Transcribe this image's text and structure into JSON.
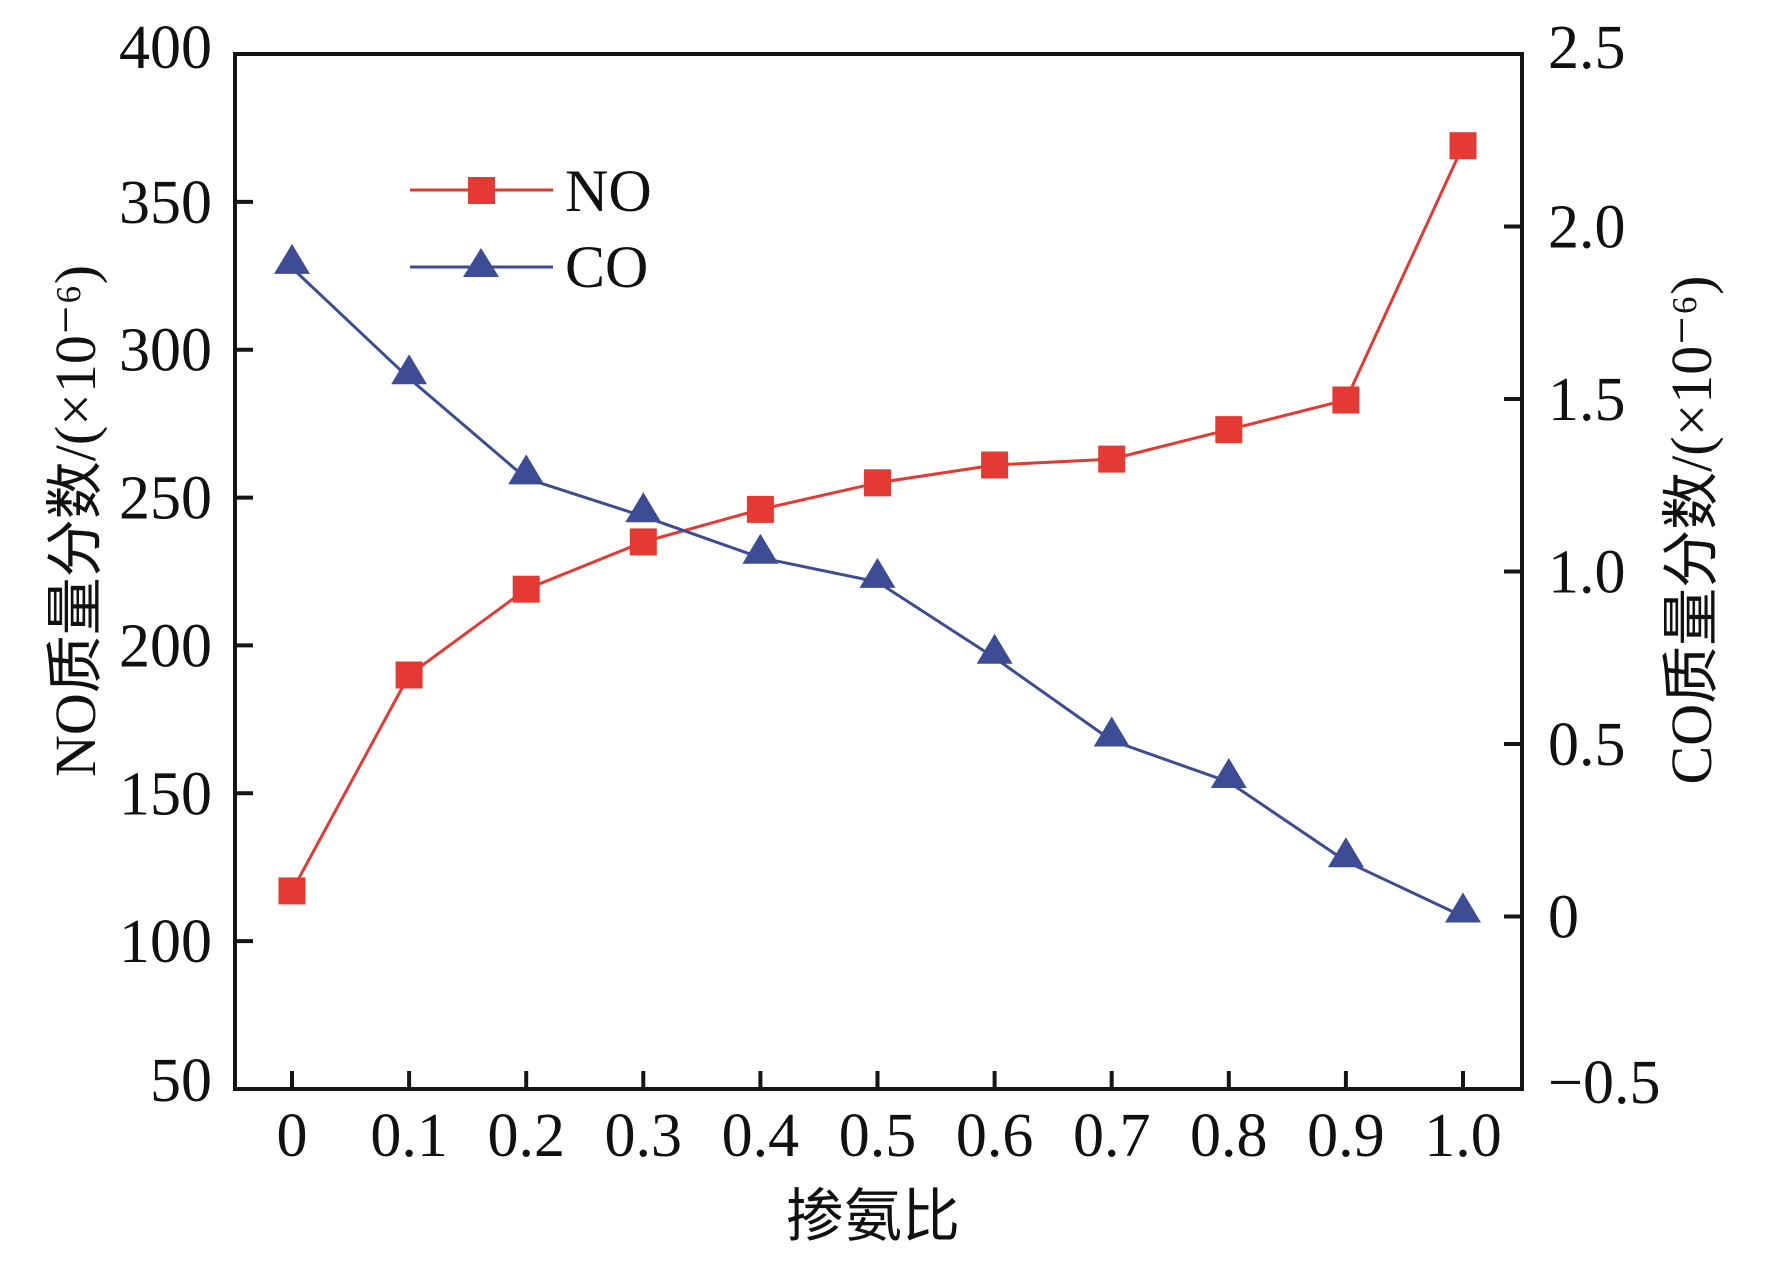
{
  "chart_data": {
    "type": "line",
    "title": "",
    "xlabel": "掺氨比",
    "ylabel_left": "NO质量分数/(×10⁻⁶)",
    "ylabel_right": "CO质量分数/(×10⁻⁶)",
    "x": [
      0,
      0.1,
      0.2,
      0.3,
      0.4,
      0.5,
      0.6,
      0.7,
      0.8,
      0.9,
      1.0
    ],
    "x_tick_labels": [
      "0",
      "0.1",
      "0.2",
      "0.3",
      "0.4",
      "0.5",
      "0.6",
      "0.7",
      "0.8",
      "0.9",
      "1.0"
    ],
    "xlim": [
      -0.05,
      1.05
    ],
    "y_left": {
      "lim": [
        50,
        400
      ],
      "ticks": [
        50,
        100,
        150,
        200,
        250,
        300,
        350,
        400
      ],
      "tick_labels": [
        "50",
        "100",
        "150",
        "200",
        "250",
        "300",
        "350",
        "400"
      ]
    },
    "y_right": {
      "lim": [
        -0.5,
        2.5
      ],
      "ticks": [
        -0.5,
        0,
        0.5,
        1.0,
        1.5,
        2.0,
        2.5
      ],
      "tick_labels": [
        "−0.5",
        "0",
        "0.5",
        "1.0",
        "1.5",
        "2.0",
        "2.5"
      ]
    },
    "series": [
      {
        "name": "NO",
        "axis": "left",
        "marker": "square",
        "color": "#E53A33",
        "values": [
          117,
          190,
          219,
          235,
          246,
          255,
          261,
          263,
          273,
          283,
          369
        ]
      },
      {
        "name": "CO",
        "axis": "right",
        "marker": "triangle",
        "color": "#3E4C96",
        "values": [
          1.88,
          1.56,
          1.27,
          1.16,
          1.04,
          0.97,
          0.75,
          0.51,
          0.39,
          0.16,
          0.0
        ]
      }
    ],
    "legend": {
      "position": "top-left",
      "entries": [
        "NO",
        "CO"
      ]
    },
    "grid": false
  }
}
